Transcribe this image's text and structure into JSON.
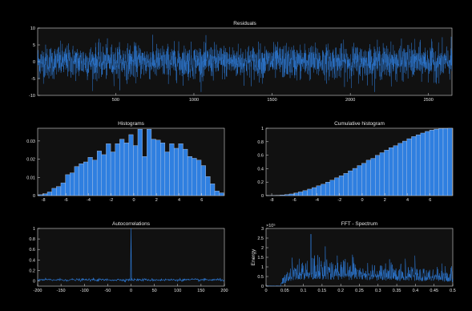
{
  "window": {
    "background": "#000000",
    "axes_background": "#111111",
    "axis_color": "#d8d8d8",
    "series_color": "#2f7fe0"
  },
  "chart_data": [
    {
      "type": "line",
      "title": "Residuals",
      "xlabel": "",
      "ylabel": "",
      "xlim": [
        1,
        2650
      ],
      "ylim": [
        -10,
        10
      ],
      "xticks": [
        500,
        1000,
        1500,
        2000,
        2500
      ],
      "yticks": [
        10,
        5,
        0,
        -5,
        -10
      ],
      "grid": false,
      "series": [
        {
          "approx_mean": 0,
          "approx_std": 2.5,
          "approx_range": [
            -9,
            8
          ],
          "x_range": [
            1,
            2650
          ]
        }
      ]
    },
    {
      "type": "bar",
      "title": "Histograms",
      "xlabel": "",
      "ylabel": "",
      "xlim": [
        -8.5,
        8
      ],
      "ylim": [
        0,
        0.037
      ],
      "xticks": [
        -8,
        -6,
        -4,
        -2,
        0,
        2,
        4,
        6
      ],
      "yticks": [
        0.03,
        0.02,
        0.01,
        0
      ],
      "ytick_labels": [
        "0.03",
        "0.02",
        "0.01",
        "0"
      ],
      "categories": [
        -8.25,
        -7.85,
        -7.45,
        -7.05,
        -6.65,
        -6.25,
        -5.85,
        -5.45,
        -5.05,
        -4.65,
        -4.25,
        -3.85,
        -3.45,
        -3.05,
        -2.65,
        -2.25,
        -1.85,
        -1.45,
        -1.05,
        -0.65,
        -0.25,
        0.15,
        0.55,
        0.95,
        1.35,
        1.75,
        2.15,
        2.55,
        2.95,
        3.35,
        3.75,
        4.15,
        4.55,
        4.95,
        5.35,
        5.75,
        6.15,
        6.55,
        6.95,
        7.35,
        7.75
      ],
      "values": [
        0.0005,
        0.001,
        0.002,
        0.004,
        0.005,
        0.007,
        0.0115,
        0.0125,
        0.016,
        0.0175,
        0.0185,
        0.021,
        0.0195,
        0.0245,
        0.0225,
        0.0285,
        0.024,
        0.0285,
        0.031,
        0.029,
        0.0335,
        0.0275,
        0.0365,
        0.0215,
        0.0365,
        0.031,
        0.0305,
        0.029,
        0.024,
        0.0285,
        0.026,
        0.0285,
        0.0255,
        0.0215,
        0.0205,
        0.0195,
        0.0165,
        0.0105,
        0.0065,
        0.0025,
        0.0015
      ]
    },
    {
      "type": "bar",
      "title": "Cumulative histogram",
      "xlabel": "",
      "ylabel": "",
      "xlim": [
        -8.5,
        8
      ],
      "ylim": [
        0,
        1
      ],
      "xticks": [
        -8,
        -6,
        -4,
        -2,
        0,
        2,
        4,
        6
      ],
      "yticks": [
        1,
        0.8,
        0.6,
        0.4,
        0.2,
        0
      ],
      "ytick_labels": [
        "1",
        "0.8",
        "0.6",
        "0.4",
        "0.2",
        "0"
      ],
      "grid": false
    },
    {
      "type": "line",
      "title": "Autocorrelations",
      "xlabel": "",
      "ylabel": "",
      "xlim": [
        -200,
        200
      ],
      "ylim": [
        -0.1,
        1
      ],
      "xticks": [
        -200,
        -150,
        -100,
        -50,
        0,
        50,
        100,
        150,
        200
      ],
      "yticks": [
        1,
        0.8,
        0.6,
        0.4,
        0.2,
        0
      ],
      "ytick_labels": [
        "1",
        "0.8",
        "0.6",
        "0.4",
        "0.2",
        "0"
      ],
      "grid": false,
      "series": [
        {
          "peak_lag": 0,
          "peak_value": 1,
          "baseline": 0.02
        }
      ]
    },
    {
      "type": "line",
      "title": "FFT - Spectrum",
      "xlabel": "",
      "ylabel": "Energy",
      "exponent_label": "×10⁵",
      "xlim": [
        0,
        0.5
      ],
      "ylim": [
        0,
        3
      ],
      "xticks": [
        0,
        0.05,
        0.1,
        0.15,
        0.2,
        0.25,
        0.3,
        0.35,
        0.4,
        0.45,
        0.5
      ],
      "xtick_labels": [
        "0",
        "0.05",
        "0.1",
        "0.15",
        "0.2",
        "0.25",
        "0.3",
        "0.35",
        "0.4",
        "0.45",
        "0.5"
      ],
      "yticks": [
        3,
        2.5,
        2,
        1.5,
        1,
        0.5,
        0
      ],
      "ytick_labels": [
        "3",
        "2.5",
        "2",
        "1.5",
        "1",
        "0.5",
        "0"
      ],
      "grid": false,
      "series": [
        {
          "onset_frequency": 0.04,
          "peak_frequency": 0.12,
          "peak_value": 2.7
        }
      ]
    }
  ]
}
